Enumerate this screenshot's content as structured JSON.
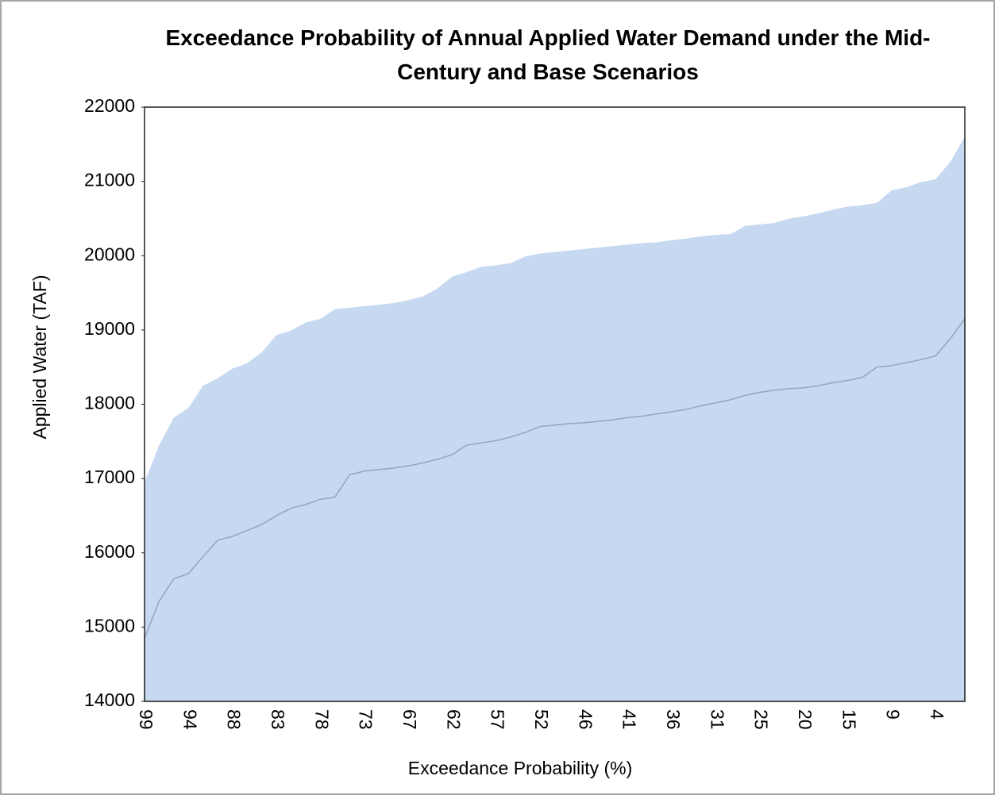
{
  "chart_data": {
    "type": "area",
    "title": "Exceedance Probability of Annual Applied Water Demand under the Mid-Century and Base Scenarios",
    "x_label": "Exceedance Probability (%)",
    "y_label": "Applied Water (TAF)",
    "categories": [
      "99",
      null,
      null,
      "94",
      null,
      null,
      "88",
      null,
      null,
      "83",
      null,
      null,
      "78",
      null,
      null,
      "73",
      null,
      null,
      "67",
      null,
      null,
      "62",
      null,
      null,
      "57",
      null,
      null,
      "52",
      null,
      null,
      "46",
      null,
      null,
      "41",
      null,
      null,
      "36",
      null,
      null,
      "31",
      null,
      null,
      "25",
      null,
      null,
      "20",
      null,
      null,
      "15",
      null,
      null,
      "9",
      null,
      null,
      "4",
      null,
      null
    ],
    "series": [
      {
        "color": "#c6d9f0",
        "values": [
          16950,
          17450,
          17820,
          17950,
          18250,
          18350,
          18480,
          18550,
          18700,
          18930,
          18990,
          19100,
          19150,
          19280,
          19300,
          19320,
          19340,
          19360,
          19400,
          19450,
          19560,
          19720,
          19780,
          19850,
          19870,
          19900,
          19990,
          20030,
          20050,
          20070,
          20090,
          20110,
          20130,
          20150,
          20170,
          20180,
          20210,
          20230,
          20260,
          20280,
          20290,
          20400,
          20420,
          20440,
          20500,
          20530,
          20570,
          20620,
          20660,
          20680,
          20710,
          20880,
          20920,
          20990,
          21030,
          21260,
          21600
        ]
      },
      {
        "color": "#c6d9f0",
        "values": [
          14850,
          15350,
          15650,
          15720,
          15950,
          16170,
          16220,
          16300,
          16380,
          16500,
          16600,
          16650,
          16720,
          16750,
          17050,
          17100,
          17120,
          17140,
          17170,
          17210,
          17260,
          17320,
          17450,
          17480,
          17510,
          17560,
          17620,
          17700,
          17720,
          17740,
          17750,
          17770,
          17790,
          17820,
          17840,
          17870,
          17900,
          17930,
          17980,
          18020,
          18060,
          18120,
          18160,
          18190,
          18210,
          18220,
          18250,
          18290,
          18320,
          18360,
          18500,
          18520,
          18560,
          18600,
          18650,
          18880,
          19150
        ]
      }
    ],
    "ylim": [
      14000,
      22000
    ],
    "yticks": [
      14000,
      15000,
      16000,
      17000,
      18000,
      19000,
      20000,
      21000,
      22000
    ]
  }
}
